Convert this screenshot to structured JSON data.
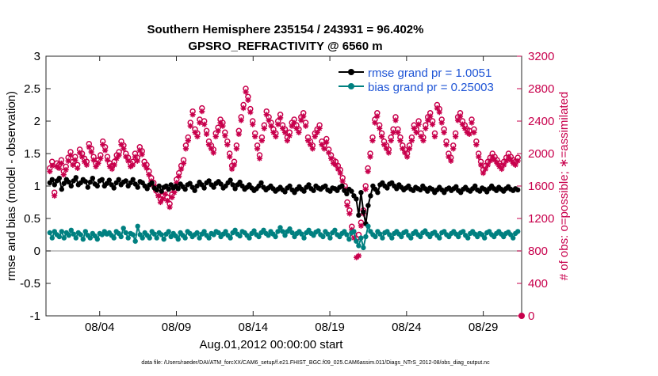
{
  "chart_data": {
    "type": "line",
    "title": "Southern Hemisphere 235154 / 243931 = 96.402%",
    "subtitle": "GPSRO_REFRACTIVITY @ 6560 m",
    "xlabel": "Aug.01,2012 00:00:00 start",
    "ylabel": "rmse and bias (model - observation)",
    "ylabel_right": "# of obs: o=possible; ∗=assimilated",
    "footer": "data file: /Users/raeder/DAI/ATM_forcXX/CAM6_setup/f.e21.FHIST_BGC.f09_025.CAM6assim.011/Diags_NTrS_2012-08/obs_diag_output.nc",
    "x_range_days": [
      0.5,
      31.5
    ],
    "x_ticks": [
      {
        "day": 4,
        "label": "08/04"
      },
      {
        "day": 9,
        "label": "08/09"
      },
      {
        "day": 14,
        "label": "08/14"
      },
      {
        "day": 19,
        "label": "08/19"
      },
      {
        "day": 24,
        "label": "08/24"
      },
      {
        "day": 29,
        "label": "08/29"
      }
    ],
    "ylim_left": [
      -1,
      3
    ],
    "yticks_left": [
      "3",
      "2.5",
      "2",
      "1.5",
      "1",
      "0.5",
      "0",
      "-0.5",
      "-1"
    ],
    "ylim_right": [
      0,
      3200
    ],
    "yticks_right": [
      "3200",
      "2800",
      "2400",
      "2000",
      "1600",
      "1200",
      "800",
      "400",
      "0"
    ],
    "zero_line": 0,
    "legend_position": "top-right",
    "series": [
      {
        "name": "rmse",
        "legend_label": "rmse grand pr = 1.0051",
        "color": "#000000",
        "axis": "left",
        "values": [
          1.05,
          1.1,
          1.02,
          1.08,
          1.12,
          0.95,
          1.04,
          1.1,
          1.06,
          1.0,
          1.08,
          1.13,
          1.02,
          1.05,
          1.1,
          1.07,
          0.98,
          1.06,
          1.12,
          1.03,
          1.0,
          1.08,
          1.1,
          1.0,
          1.04,
          1.09,
          1.02,
          0.97,
          1.05,
          1.1,
          1.02,
          1.06,
          1.08,
          1.0,
          1.05,
          1.1,
          1.03,
          0.98,
          1.07,
          1.05,
          1.0,
          0.96,
          1.02,
          1.05,
          0.97,
          0.94,
          1.0,
          0.92,
          0.98,
          1.0,
          0.95,
          1.02,
          0.97,
          1.0,
          0.96,
          1.03,
          0.99,
          0.95,
          1.02,
          1.04,
          0.98,
          0.93,
          1.0,
          1.06,
          1.02,
          0.97,
          1.05,
          1.08,
          1.02,
          0.98,
          1.04,
          1.07,
          1.03,
          0.97,
          1.0,
          1.05,
          1.09,
          1.02,
          0.96,
          1.02,
          1.06,
          1.0,
          0.95,
          0.98,
          1.02,
          0.97,
          0.93,
          0.96,
          1.0,
          1.05,
          0.98,
          0.94,
          0.97,
          1.0,
          0.96,
          0.92,
          0.95,
          0.98,
          0.94,
          0.91,
          0.97,
          1.0,
          0.94,
          0.9,
          0.95,
          0.99,
          0.95,
          0.92,
          0.98,
          1.02,
          0.96,
          0.93,
          1.0,
          0.97,
          0.95,
          0.98,
          1.0,
          0.94,
          0.92,
          0.97,
          0.96,
          0.93,
          0.98,
          1.0,
          0.93,
          0.88,
          0.95,
          0.92,
          0.85,
          0.8,
          0.55,
          0.9,
          0.6,
          0.42,
          0.7,
          0.85,
          1.0,
          0.95,
          0.9,
          1.02,
          1.05,
          1.0,
          0.97,
          1.03,
          1.05,
          1.0,
          0.96,
          1.02,
          0.98,
          0.94,
          0.97,
          1.0,
          0.95,
          0.93,
          0.98,
          0.96,
          0.94,
          1.0,
          0.96,
          0.92,
          0.97,
          0.95,
          0.9,
          0.94,
          0.98,
          0.94,
          0.9,
          0.95,
          0.97,
          0.93,
          0.96,
          0.99,
          0.93,
          0.9,
          0.95,
          0.98,
          0.94,
          0.92,
          0.96,
          1.0,
          0.94,
          0.92,
          0.97,
          0.95,
          0.91,
          0.96,
          1.0,
          0.96,
          0.93,
          0.98,
          0.95,
          0.92,
          0.96,
          0.99,
          0.95,
          0.93,
          0.96,
          0.94
        ]
      },
      {
        "name": "bias",
        "legend_label": "bias grand pr = 0.25003",
        "color": "#008080",
        "axis": "left",
        "values": [
          0.28,
          0.2,
          0.3,
          0.25,
          0.22,
          0.3,
          0.2,
          0.28,
          0.24,
          0.32,
          0.26,
          0.2,
          0.28,
          0.25,
          0.18,
          0.3,
          0.24,
          0.2,
          0.27,
          0.23,
          0.18,
          0.27,
          0.25,
          0.3,
          0.26,
          0.28,
          0.24,
          0.2,
          0.3,
          0.27,
          0.22,
          0.35,
          0.28,
          0.2,
          0.27,
          0.25,
          0.15,
          0.38,
          0.25,
          0.2,
          0.28,
          0.24,
          0.2,
          0.3,
          0.26,
          0.2,
          0.28,
          0.25,
          0.18,
          0.26,
          0.3,
          0.22,
          0.27,
          0.23,
          0.18,
          0.28,
          0.24,
          0.2,
          0.3,
          0.27,
          0.22,
          0.25,
          0.28,
          0.2,
          0.26,
          0.3,
          0.24,
          0.2,
          0.27,
          0.25,
          0.3,
          0.28,
          0.22,
          0.26,
          0.3,
          0.24,
          0.2,
          0.28,
          0.32,
          0.26,
          0.23,
          0.3,
          0.28,
          0.24,
          0.2,
          0.27,
          0.31,
          0.25,
          0.22,
          0.28,
          0.32,
          0.27,
          0.24,
          0.3,
          0.26,
          0.22,
          0.3,
          0.36,
          0.3,
          0.24,
          0.3,
          0.34,
          0.28,
          0.22,
          0.27,
          0.3,
          0.26,
          0.2,
          0.28,
          0.32,
          0.27,
          0.24,
          0.29,
          0.31,
          0.25,
          0.22,
          0.3,
          0.26,
          0.2,
          0.28,
          0.32,
          0.25,
          0.22,
          0.27,
          0.3,
          0.25,
          0.18,
          0.28,
          0.3,
          0.15,
          0.08,
          0.2,
          0.05,
          0.22,
          0.38,
          0.3,
          0.25,
          0.22,
          0.3,
          0.26,
          0.2,
          0.28,
          0.3,
          0.25,
          0.2,
          0.27,
          0.3,
          0.26,
          0.22,
          0.28,
          0.3,
          0.24,
          0.2,
          0.27,
          0.3,
          0.25,
          0.22,
          0.28,
          0.31,
          0.26,
          0.22,
          0.27,
          0.29,
          0.24,
          0.2,
          0.28,
          0.3,
          0.25,
          0.22,
          0.27,
          0.3,
          0.26,
          0.22,
          0.28,
          0.3,
          0.24,
          0.2,
          0.27,
          0.3,
          0.26,
          0.22,
          0.27,
          0.25,
          0.2,
          0.28,
          0.3,
          0.25,
          0.22,
          0.27,
          0.3,
          0.26,
          0.22,
          0.27,
          0.29,
          0.25,
          0.2,
          0.27,
          0.3
        ]
      },
      {
        "name": "obs_possible",
        "marker": "o",
        "color": "#c8004c",
        "axis": "right",
        "values": [
          1820,
          1900,
          1520,
          1880,
          1860,
          1920,
          1780,
          1840,
          1950,
          2020,
          1900,
          1960,
          1860,
          2050,
          2000,
          1940,
          1900,
          2120,
          2060,
          1960,
          1880,
          1920,
          1980,
          2150,
          2080,
          1960,
          1880,
          1850,
          1900,
          1980,
          2020,
          2150,
          2100,
          2000,
          1950,
          1880,
          1900,
          2000,
          1950,
          2080,
          2030,
          1900,
          1860,
          1780,
          1700,
          1640,
          1580,
          1520,
          1440,
          1480,
          1540,
          1460,
          1380,
          1500,
          1560,
          1680,
          1760,
          1850,
          1920,
          2100,
          2200,
          2380,
          2520,
          2300,
          2250,
          2420,
          2560,
          2400,
          2280,
          2150,
          2100,
          2050,
          2250,
          2320,
          2420,
          2380,
          2260,
          2150,
          2000,
          1850,
          1900,
          2100,
          2280,
          2450,
          2600,
          2800,
          2700,
          2550,
          2400,
          2250,
          2100,
          1980,
          2200,
          2350,
          2520,
          2450,
          2380,
          2300,
          2250,
          2400,
          2480,
          2350,
          2300,
          2200,
          2260,
          2380,
          2420,
          2350,
          2300,
          2450,
          2500,
          2380,
          2200,
          2150,
          2100,
          2250,
          2300,
          2350,
          2150,
          2100,
          2180,
          2050,
          1980,
          1920,
          1900,
          1850,
          1800,
          1700,
          1600,
          1400,
          1300,
          1100,
          1000,
          950,
          1000,
          1150,
          1300,
          1600,
          1820,
          2000,
          2200,
          2420,
          2500,
          2350,
          2250,
          2150,
          2100,
          2050,
          2200,
          2300,
          2450,
          2300,
          2200,
          2100,
          2050,
          2000,
          2100,
          2200,
          2350,
          2300,
          2400,
          2250,
          2200,
          2350,
          2450,
          2500,
          2400,
          2250,
          2600,
          2550,
          2420,
          2300,
          2150,
          2000,
          1950,
          2100,
          2250,
          2450,
          2500,
          2400,
          2350,
          2300,
          2280,
          2420,
          2300,
          2150,
          2000,
          1900,
          1800,
          1850,
          1900,
          1950,
          2000,
          1960,
          1920,
          1880,
          1850,
          1900,
          1950,
          2000,
          1960,
          1920,
          1900,
          1950
        ]
      },
      {
        "name": "obs_assimilated",
        "marker": "*",
        "color": "#c8004c",
        "axis": "right",
        "values": [
          1780,
          1850,
          1480,
          1840,
          1820,
          1880,
          1740,
          1800,
          1910,
          1980,
          1860,
          1920,
          1820,
          2010,
          1960,
          1900,
          1860,
          2080,
          2020,
          1920,
          1840,
          1880,
          1940,
          2110,
          2040,
          1920,
          1840,
          1810,
          1860,
          1940,
          1980,
          2110,
          2060,
          1960,
          1910,
          1840,
          1860,
          1960,
          1910,
          2040,
          1990,
          1860,
          1820,
          1740,
          1660,
          1600,
          1540,
          1480,
          1400,
          1440,
          1500,
          1420,
          1340,
          1460,
          1520,
          1640,
          1720,
          1810,
          1880,
          2060,
          2160,
          2340,
          2480,
          2260,
          2210,
          2380,
          2520,
          2360,
          2240,
          2110,
          2060,
          2010,
          2210,
          2280,
          2380,
          2340,
          2220,
          2110,
          1960,
          1810,
          1860,
          2060,
          2240,
          2410,
          2560,
          2760,
          2660,
          2510,
          2360,
          2210,
          2060,
          1940,
          2160,
          2310,
          2480,
          2410,
          2340,
          2260,
          2210,
          2360,
          2440,
          2310,
          2260,
          2160,
          2220,
          2340,
          2380,
          2310,
          2260,
          2410,
          2460,
          2340,
          2160,
          2110,
          2060,
          2210,
          2260,
          2310,
          2110,
          2060,
          2140,
          2010,
          1940,
          1880,
          1860,
          1810,
          1760,
          1660,
          1560,
          1360,
          1260,
          1060,
          960,
          720,
          740,
          1110,
          1260,
          1560,
          1780,
          1960,
          2160,
          2380,
          2460,
          2310,
          2210,
          2110,
          2060,
          2010,
          2160,
          2260,
          2410,
          2260,
          2160,
          2060,
          2010,
          1960,
          2060,
          2160,
          2310,
          2260,
          2360,
          2210,
          2160,
          2310,
          2410,
          2460,
          2360,
          2210,
          2560,
          2510,
          2380,
          2260,
          2110,
          1960,
          1910,
          2060,
          2210,
          2410,
          2460,
          2360,
          2310,
          2260,
          2240,
          2380,
          2260,
          2110,
          1960,
          1860,
          1760,
          1810,
          1860,
          1910,
          1960,
          1920,
          1880,
          1840,
          1810,
          1860,
          1910,
          1960,
          1920,
          1880,
          1860,
          1910
        ]
      }
    ]
  }
}
